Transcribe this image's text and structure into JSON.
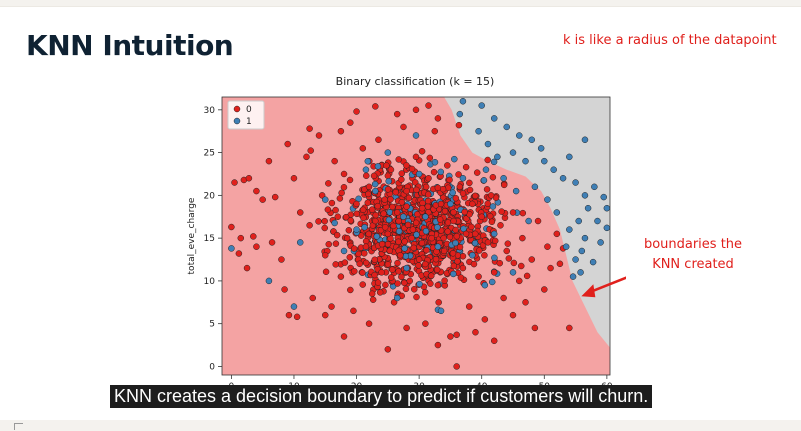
{
  "slide": {
    "title": "KNN Intuition",
    "note_top": "k is like a radius of the datapoint",
    "note_side_line1": "boundaries the",
    "note_side_line2": "KNN created",
    "caption": "KNN creates a decision boundary to predict if customers will churn."
  },
  "colors": {
    "class0_region": "#f4a3a3",
    "class1_region": "#d4d4d4",
    "class0_point": "#e0201c",
    "class1_point": "#3f7fb5",
    "annotation": "#e0201c"
  },
  "chart_data": {
    "type": "scatter",
    "title": "Binary classification (k = 15)",
    "xlabel": "",
    "ylabel": "total_eve_charge",
    "xlim": [
      -1.5,
      60.5
    ],
    "ylim": [
      -1,
      31.5
    ],
    "xticks": [
      0,
      10,
      20,
      30,
      40,
      50,
      60
    ],
    "yticks": [
      0,
      5,
      10,
      15,
      20,
      25,
      30
    ],
    "legend": {
      "position": "top-left",
      "entries": [
        "0",
        "1"
      ]
    },
    "decision_boundary": [
      [
        34,
        31.5
      ],
      [
        35.2,
        30
      ],
      [
        36.6,
        27
      ],
      [
        38.5,
        25
      ],
      [
        41,
        24
      ],
      [
        44,
        23
      ],
      [
        47,
        22.2
      ],
      [
        49.5,
        20.5
      ],
      [
        51,
        18.5
      ],
      [
        52.5,
        16
      ],
      [
        53.5,
        13
      ],
      [
        54.5,
        10
      ],
      [
        56.5,
        7
      ],
      [
        58.5,
        4
      ],
      [
        60.5,
        2.2
      ]
    ],
    "series": [
      {
        "name": "0",
        "points": [
          [
            0,
            16.3
          ],
          [
            0.5,
            21.5
          ],
          [
            1.5,
            15
          ],
          [
            2,
            21.8
          ],
          [
            2.8,
            22
          ],
          [
            1.2,
            13.2
          ],
          [
            2.5,
            11.5
          ],
          [
            3.5,
            15.2
          ],
          [
            4,
            14
          ],
          [
            5,
            19.5
          ],
          [
            6.5,
            14.5
          ],
          [
            7,
            19.8
          ],
          [
            8,
            12.5
          ],
          [
            8.5,
            9
          ],
          [
            9.2,
            6
          ],
          [
            10,
            22
          ],
          [
            10.5,
            5.8
          ],
          [
            11,
            18
          ],
          [
            12,
            24.5
          ],
          [
            12.5,
            16.5
          ],
          [
            13,
            8
          ],
          [
            14,
            27
          ],
          [
            14.5,
            20
          ],
          [
            15,
            13
          ],
          [
            16,
            7
          ],
          [
            16.5,
            24
          ],
          [
            17,
            17.5
          ],
          [
            17.5,
            10.5
          ],
          [
            18,
            22.5
          ],
          [
            18.5,
            15
          ],
          [
            19,
            28.5
          ],
          [
            19.5,
            6.5
          ],
          [
            20,
            19
          ],
          [
            20.5,
            12
          ],
          [
            21,
            25.5
          ],
          [
            21.5,
            14
          ],
          [
            22,
            21
          ],
          [
            22.5,
            8.5
          ],
          [
            23,
            17
          ],
          [
            23.5,
            26.5
          ],
          [
            24,
            11
          ],
          [
            24.5,
            19.5
          ],
          [
            25,
            15.5
          ],
          [
            25.5,
            23
          ],
          [
            26,
            7.5
          ],
          [
            26.5,
            18
          ],
          [
            27,
            13
          ],
          [
            27.5,
            28
          ],
          [
            28,
            20.5
          ],
          [
            28.5,
            10
          ],
          [
            29,
            16
          ],
          [
            29.5,
            24.5
          ],
          [
            30,
            12.5
          ],
          [
            30.5,
            18.5
          ],
          [
            31,
            5
          ],
          [
            31.5,
            22
          ],
          [
            32,
            15
          ],
          [
            32.5,
            27.5
          ],
          [
            33,
            9.5
          ],
          [
            33.5,
            19
          ],
          [
            34,
            13.5
          ],
          [
            34.5,
            23.5
          ],
          [
            35,
            3.5
          ],
          [
            35.5,
            17
          ],
          [
            36,
            0
          ],
          [
            36.5,
            21
          ],
          [
            37,
            11.5
          ],
          [
            37.5,
            15.5
          ],
          [
            38,
            7
          ],
          [
            38.5,
            19
          ],
          [
            39,
            13
          ],
          [
            39.5,
            10.5
          ],
          [
            40,
            17.5
          ],
          [
            40.5,
            5.5
          ],
          [
            41,
            14.5
          ],
          [
            41.5,
            20
          ],
          [
            42,
            11
          ],
          [
            43,
            16.5
          ],
          [
            43.5,
            8
          ],
          [
            44,
            13.5
          ],
          [
            45,
            18
          ],
          [
            46,
            10
          ],
          [
            46.5,
            15
          ],
          [
            47,
            7.5
          ],
          [
            48,
            12.5
          ],
          [
            49,
            17
          ],
          [
            50,
            9
          ],
          [
            50.5,
            14
          ],
          [
            51,
            11.5
          ],
          [
            52,
            15.5
          ],
          [
            52.5,
            12
          ],
          [
            53,
            13.8
          ],
          [
            54,
            4.5
          ],
          [
            48.5,
            4.5
          ],
          [
            45,
            6
          ],
          [
            42,
            3
          ],
          [
            39,
            4
          ],
          [
            36,
            3.7
          ],
          [
            33,
            2.5
          ],
          [
            28,
            4.5
          ],
          [
            25,
            2
          ],
          [
            22,
            5
          ],
          [
            18,
            3.5
          ],
          [
            15,
            6
          ],
          [
            31.5,
            30.5
          ],
          [
            29.5,
            30
          ],
          [
            26.5,
            29.5
          ],
          [
            23,
            30.4
          ],
          [
            33,
            29
          ],
          [
            20,
            29.8
          ],
          [
            17.5,
            27.5
          ],
          [
            12.5,
            27.8
          ],
          [
            9,
            26
          ],
          [
            4,
            20.5
          ],
          [
            6,
            24
          ]
        ]
      },
      {
        "name": "1",
        "points": [
          [
            37,
            31
          ],
          [
            40,
            30.5
          ],
          [
            42,
            29
          ],
          [
            44,
            28
          ],
          [
            46,
            27
          ],
          [
            48,
            26.5
          ],
          [
            49.5,
            25.5
          ],
          [
            45,
            25
          ],
          [
            47,
            24
          ],
          [
            50,
            24
          ],
          [
            51.5,
            23
          ],
          [
            53,
            22
          ],
          [
            55,
            21.5
          ],
          [
            56.5,
            20
          ],
          [
            58,
            21
          ],
          [
            59.5,
            19.8
          ],
          [
            57,
            18.5
          ],
          [
            60,
            18.5
          ],
          [
            55.5,
            17
          ],
          [
            58.5,
            17
          ],
          [
            54,
            16
          ],
          [
            56.5,
            15
          ],
          [
            59,
            14.5
          ],
          [
            53.5,
            14
          ],
          [
            56,
            13.5
          ],
          [
            55,
            12.5
          ],
          [
            55.8,
            11
          ],
          [
            54.6,
            10.5
          ],
          [
            57.8,
            12.2
          ],
          [
            60,
            16.2
          ],
          [
            41,
            26
          ],
          [
            43.5,
            22
          ],
          [
            48.5,
            21
          ],
          [
            50.5,
            19.5
          ],
          [
            52,
            18
          ],
          [
            45.5,
            20.5
          ],
          [
            39.5,
            27.5
          ],
          [
            42.5,
            24.5
          ],
          [
            36.5,
            29.5
          ],
          [
            56.5,
            26.5
          ],
          [
            54,
            24.5
          ],
          [
            25,
            25
          ],
          [
            30,
            22.5
          ],
          [
            33,
            14
          ],
          [
            20,
            16
          ],
          [
            28,
            11.5
          ],
          [
            35,
            19
          ],
          [
            38.5,
            13
          ],
          [
            42,
            15.5
          ],
          [
            15,
            19.5
          ],
          [
            18,
            13.5
          ],
          [
            23,
            20.5
          ],
          [
            31,
            17.5
          ],
          [
            40.5,
            9.5
          ],
          [
            26.5,
            8
          ],
          [
            33.5,
            6.5
          ],
          [
            6,
            10
          ],
          [
            10,
            7
          ],
          [
            0,
            13.8
          ],
          [
            45,
            11
          ],
          [
            47.5,
            17
          ],
          [
            37,
            22
          ],
          [
            29.5,
            27
          ],
          [
            21.5,
            23
          ],
          [
            11,
            14.5
          ]
        ]
      }
    ]
  }
}
